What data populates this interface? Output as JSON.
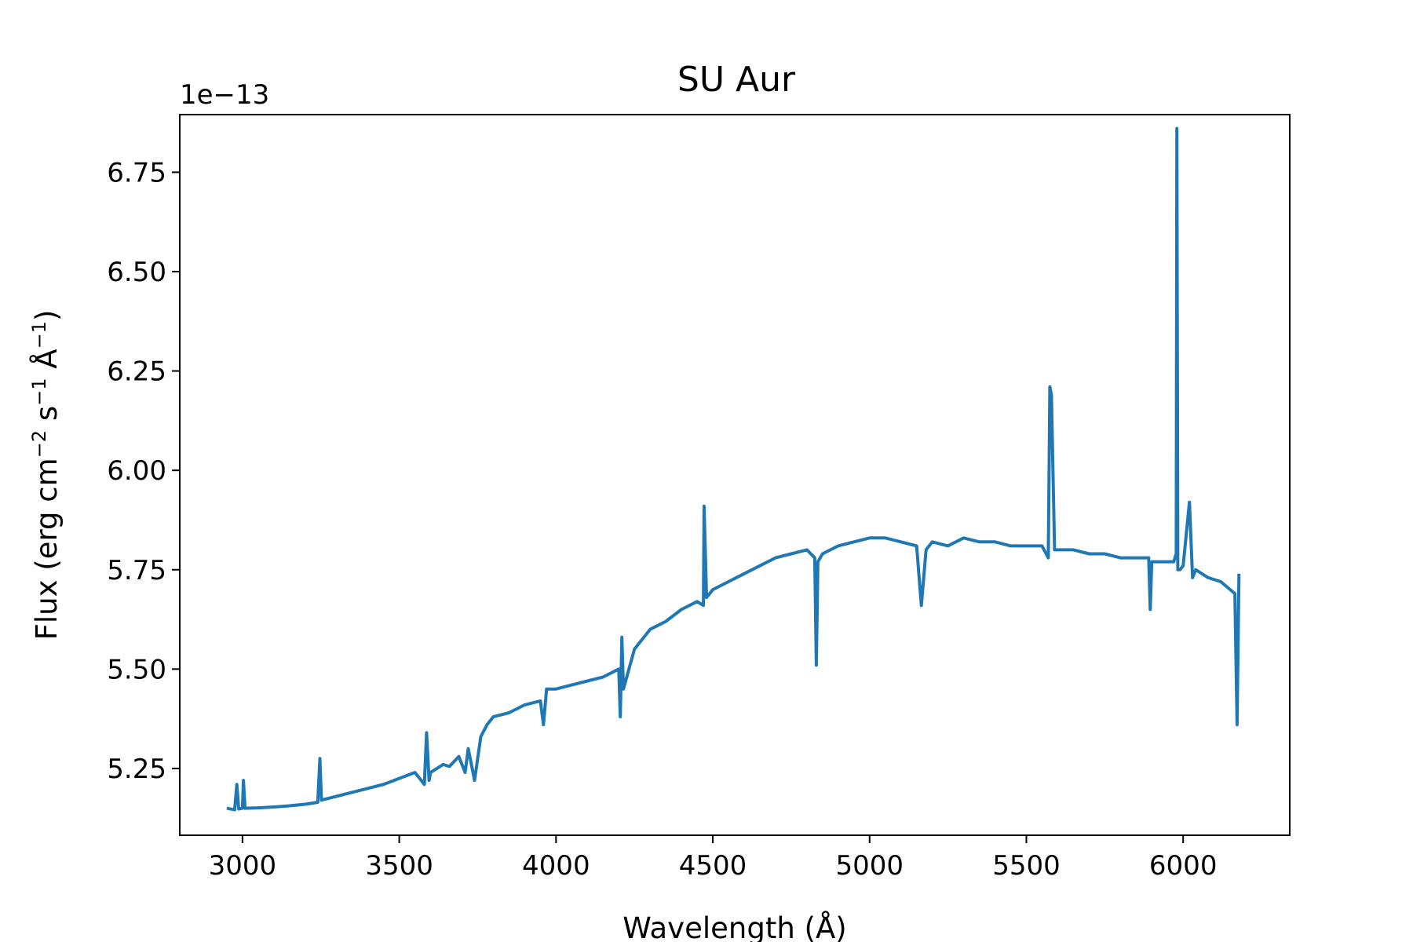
{
  "chart_data": {
    "type": "line",
    "title": "SU Aur",
    "xlabel": "Wavelength (Å)",
    "ylabel_main": "Flux (erg cm",
    "ylabel_exp1": "−2",
    "ylabel_mid": " s",
    "ylabel_exp2": "−1",
    "ylabel_mid2": " Å",
    "ylabel_exp3": "−1",
    "ylabel_end": ")",
    "offset_text": "1e−13",
    "xlim": [
      2800,
      6340
    ],
    "ylim": [
      5.082,
      6.895
    ],
    "xticks": [
      3000,
      3500,
      4000,
      4500,
      5000,
      5500,
      6000
    ],
    "xtick_labels": [
      "3000",
      "3500",
      "4000",
      "4500",
      "5000",
      "5500",
      "6000"
    ],
    "yticks": [
      5.25,
      5.5,
      5.75,
      6.0,
      6.25,
      6.5,
      6.75
    ],
    "ytick_labels": [
      "5.25",
      "5.50",
      "5.75",
      "6.00",
      "6.25",
      "6.50",
      "6.75"
    ],
    "line_color": "#1f77b4",
    "grid": false,
    "series": [
      {
        "name": "",
        "x": [
          2950,
          2975,
          2982,
          2988,
          3000,
          3003,
          3008,
          3050,
          3100,
          3150,
          3200,
          3240,
          3247,
          3252,
          3260,
          3300,
          3350,
          3400,
          3450,
          3500,
          3550,
          3580,
          3587,
          3595,
          3600,
          3640,
          3660,
          3690,
          3710,
          3720,
          3740,
          3760,
          3780,
          3800,
          3850,
          3900,
          3950,
          3960,
          3970,
          4000,
          4050,
          4100,
          4150,
          4200,
          4205,
          4210,
          4215,
          4250,
          4300,
          4350,
          4400,
          4450,
          4470,
          4472,
          4480,
          4500,
          4550,
          4600,
          4650,
          4700,
          4750,
          4800,
          4825,
          4830,
          4835,
          4850,
          4900,
          4950,
          5000,
          5050,
          5100,
          5150,
          5165,
          5180,
          5200,
          5250,
          5300,
          5350,
          5400,
          5450,
          5500,
          5550,
          5570,
          5575,
          5580,
          5590,
          5600,
          5650,
          5700,
          5750,
          5800,
          5850,
          5890,
          5895,
          5900,
          5950,
          5970,
          5978,
          5980,
          5983,
          5990,
          6000,
          6020,
          6030,
          6040,
          6080,
          6120,
          6150,
          6165,
          6172,
          6178
        ],
        "y": [
          5.15,
          5.146,
          5.21,
          5.148,
          5.15,
          5.22,
          5.15,
          5.151,
          5.153,
          5.156,
          5.16,
          5.165,
          5.275,
          5.17,
          5.172,
          5.18,
          5.19,
          5.2,
          5.21,
          5.225,
          5.24,
          5.21,
          5.34,
          5.22,
          5.24,
          5.26,
          5.255,
          5.28,
          5.24,
          5.3,
          5.22,
          5.33,
          5.36,
          5.38,
          5.39,
          5.41,
          5.42,
          5.36,
          5.45,
          5.45,
          5.46,
          5.47,
          5.48,
          5.5,
          5.38,
          5.58,
          5.45,
          5.55,
          5.6,
          5.62,
          5.65,
          5.67,
          5.66,
          5.91,
          5.68,
          5.7,
          5.72,
          5.74,
          5.76,
          5.78,
          5.79,
          5.8,
          5.78,
          5.51,
          5.77,
          5.79,
          5.81,
          5.82,
          5.83,
          5.83,
          5.82,
          5.81,
          5.66,
          5.8,
          5.82,
          5.81,
          5.83,
          5.82,
          5.82,
          5.81,
          5.81,
          5.81,
          5.78,
          6.21,
          6.19,
          5.8,
          5.8,
          5.8,
          5.79,
          5.79,
          5.78,
          5.78,
          5.78,
          5.65,
          5.77,
          5.77,
          5.77,
          5.79,
          6.86,
          5.75,
          5.75,
          5.76,
          5.92,
          5.73,
          5.75,
          5.73,
          5.72,
          5.7,
          5.69,
          5.36,
          5.74
        ]
      }
    ]
  }
}
